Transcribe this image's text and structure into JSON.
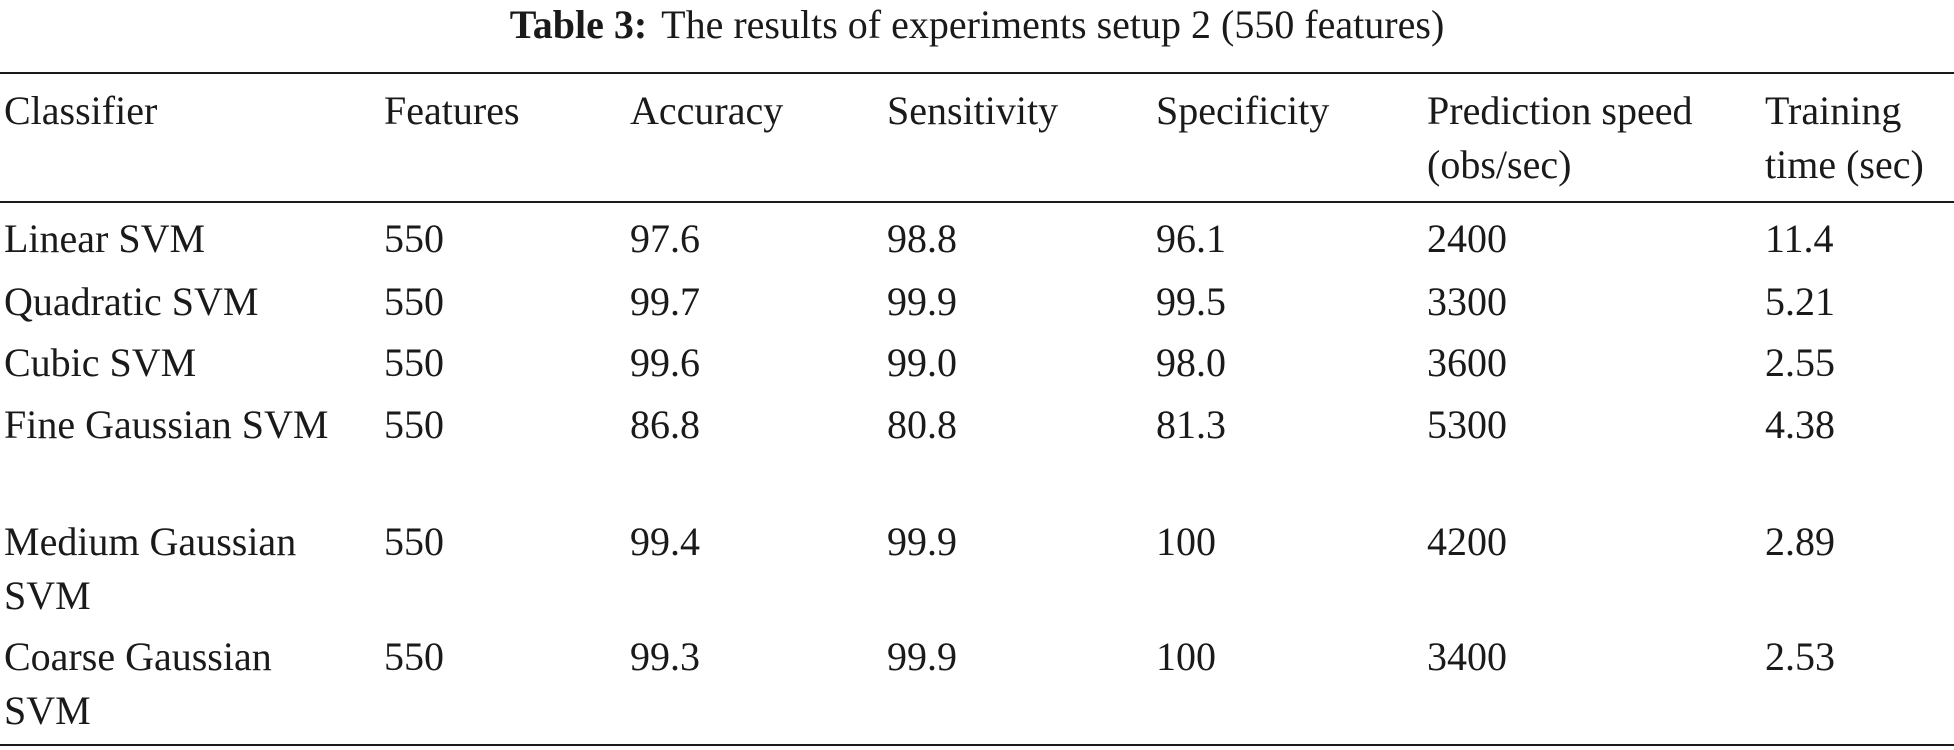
{
  "caption": {
    "label": "Table 3:",
    "text": "The results of experiments setup 2 (550 features)"
  },
  "table": {
    "headers": [
      "Classifier",
      "Features",
      "Accuracy",
      "Sensitivity",
      "Specificity",
      "Prediction speed (obs/sec)",
      "Training time (sec)"
    ],
    "rows": [
      [
        "Linear SVM",
        "550",
        "97.6",
        "98.8",
        "96.1",
        "2400",
        "11.4"
      ],
      [
        "Quadratic SVM",
        "550",
        "99.7",
        "99.9",
        "99.5",
        "3300",
        "5.21"
      ],
      [
        "Cubic SVM",
        "550",
        "99.6",
        "99.0",
        "98.0",
        "3600",
        "2.55"
      ],
      [
        "Fine Gaussian SVM",
        "550",
        "86.8",
        "80.8",
        "81.3",
        "5300",
        "4.38"
      ],
      [
        "Medium Gaussian SVM",
        "550",
        "99.4",
        "99.9",
        "100",
        "4200",
        "2.89"
      ],
      [
        "Coarse Gaussian SVM",
        "550",
        "99.3",
        "99.9",
        "100",
        "3400",
        "2.53"
      ]
    ]
  }
}
